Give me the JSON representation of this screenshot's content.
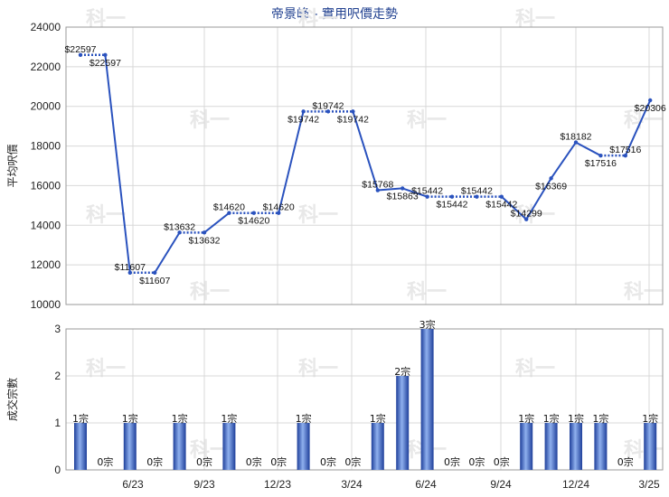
{
  "chart_data": [
    {
      "type": "line",
      "title": "帝景峰 - 實用呎價走勢",
      "ylabel": "平均呎價",
      "ylim": [
        10000,
        24000
      ],
      "yticks": [
        "10000",
        "12000",
        "14000",
        "16000",
        "18000",
        "20000",
        "22000",
        "24000"
      ],
      "xticks": [
        "6/23",
        "9/23",
        "12/23",
        "3/24",
        "6/24",
        "9/24",
        "12/24",
        "3/25"
      ],
      "point_labels_prefix": "$",
      "points": [
        {
          "i": 0,
          "y": 22597,
          "label": "$22597",
          "traded": true
        },
        {
          "i": 1,
          "y": 22597,
          "label": "$22597",
          "traded": false
        },
        {
          "i": 2,
          "y": 11607,
          "label": "$11607",
          "traded": true
        },
        {
          "i": 3,
          "y": 11607,
          "label": "$11607",
          "traded": false
        },
        {
          "i": 4,
          "y": 13632,
          "label": "$13632",
          "traded": true
        },
        {
          "i": 5,
          "y": 13632,
          "label": "$13632",
          "traded": false
        },
        {
          "i": 6,
          "y": 14620,
          "label": "$14620",
          "traded": true
        },
        {
          "i": 7,
          "y": 14620,
          "label": "$14620",
          "traded": false
        },
        {
          "i": 8,
          "y": 14620,
          "label": "$14620",
          "traded": false
        },
        {
          "i": 9,
          "y": 19742,
          "label": "$19742",
          "traded": true
        },
        {
          "i": 10,
          "y": 19742,
          "label": "$19742",
          "traded": false
        },
        {
          "i": 11,
          "y": 19742,
          "label": "$19742",
          "traded": false
        },
        {
          "i": 12,
          "y": 15768,
          "label": "$15768",
          "traded": true
        },
        {
          "i": 13,
          "y": 15863,
          "label": "$15863",
          "traded": true
        },
        {
          "i": 14,
          "y": 15442,
          "label": "$15442",
          "traded": true
        },
        {
          "i": 15,
          "y": 15442,
          "label": "$15442",
          "traded": false
        },
        {
          "i": 16,
          "y": 15442,
          "label": "$15442",
          "traded": false
        },
        {
          "i": 17,
          "y": 15442,
          "label": "$15442",
          "traded": false
        },
        {
          "i": 18,
          "y": 14299,
          "label": "$14299",
          "traded": true
        },
        {
          "i": 19,
          "y": 16369,
          "label": "$16369",
          "traded": true
        },
        {
          "i": 20,
          "y": 18182,
          "label": "$18182",
          "traded": true
        },
        {
          "i": 21,
          "y": 17516,
          "label": "$17516",
          "traded": true
        },
        {
          "i": 22,
          "y": 17516,
          "label": "$17516",
          "traded": false
        },
        {
          "i": 23,
          "y": 20306,
          "label": "$20306",
          "traded": true
        }
      ],
      "line_color": "#2a52be"
    },
    {
      "type": "bar",
      "ylabel": "成交宗數",
      "ylim": [
        0,
        3
      ],
      "yticks": [
        "0",
        "1",
        "2",
        "3"
      ],
      "xticks": [
        "6/23",
        "9/23",
        "12/23",
        "3/24",
        "6/24",
        "9/24",
        "12/24",
        "3/25"
      ],
      "values": [
        1,
        0,
        1,
        0,
        1,
        0,
        1,
        0,
        0,
        1,
        0,
        0,
        1,
        2,
        3,
        0,
        0,
        0,
        1,
        1,
        1,
        1,
        0,
        1
      ],
      "labels": [
        "1宗",
        "0宗",
        "1宗",
        "0宗",
        "1宗",
        "0宗",
        "1宗",
        "0宗",
        "0宗",
        "1宗",
        "0宗",
        "0宗",
        "1宗",
        "2宗",
        "3宗",
        "0宗",
        "0宗",
        "0宗",
        "1宗",
        "1宗",
        "1宗",
        "1宗",
        "0宗",
        "1宗"
      ],
      "bar_color": "#3f66c4"
    }
  ],
  "watermark": "科一"
}
